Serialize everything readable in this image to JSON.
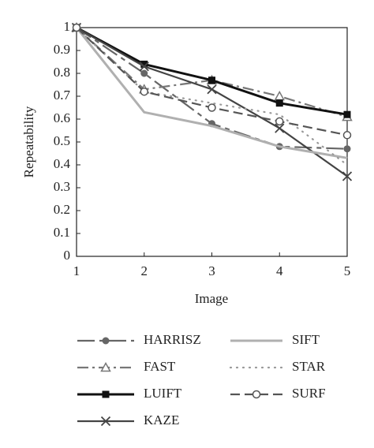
{
  "chart_data": {
    "type": "line",
    "x_label": "Image",
    "y_label": "Repeatability",
    "x": [
      1,
      2,
      3,
      4,
      5
    ],
    "xlim": [
      1,
      5
    ],
    "xticks": [
      1,
      2,
      3,
      4,
      5
    ],
    "ylim": [
      0,
      1
    ],
    "yticks": [
      0,
      0.1,
      0.2,
      0.3,
      0.4,
      0.5,
      0.6,
      0.7,
      0.8,
      0.9,
      1
    ],
    "grid": false,
    "legend": "bottom",
    "series": [
      {
        "name": "HARRISZ",
        "color": "#666666",
        "marker": "circle",
        "dash": "22,6,6,6",
        "values": [
          1,
          0.8,
          0.58,
          0.48,
          0.47
        ]
      },
      {
        "name": "FAST",
        "color": "#777777",
        "marker": "triangle",
        "dash": "14,5,3,5",
        "values": [
          1,
          0.73,
          0.77,
          0.7,
          0.61
        ]
      },
      {
        "name": "LUIFT",
        "color": "#111111",
        "marker": "square",
        "dash": "none",
        "values": [
          1,
          0.84,
          0.77,
          0.67,
          0.62
        ]
      },
      {
        "name": "KAZE",
        "color": "#444444",
        "marker": "x",
        "dash": "none",
        "values": [
          1,
          0.83,
          0.73,
          0.56,
          0.35
        ]
      },
      {
        "name": "SIFT",
        "color": "#b0b0b0",
        "marker": "none",
        "dash": "none",
        "values": [
          1,
          0.63,
          0.57,
          0.48,
          0.43
        ]
      },
      {
        "name": "STAR",
        "color": "#999999",
        "marker": "none",
        "dash": "1,7",
        "values": [
          1,
          0.72,
          0.67,
          0.62,
          0.4
        ]
      },
      {
        "name": "SURF",
        "color": "#555555",
        "marker": "open-circle",
        "dash": "12,6",
        "values": [
          1,
          0.72,
          0.65,
          0.59,
          0.53
        ]
      }
    ]
  }
}
